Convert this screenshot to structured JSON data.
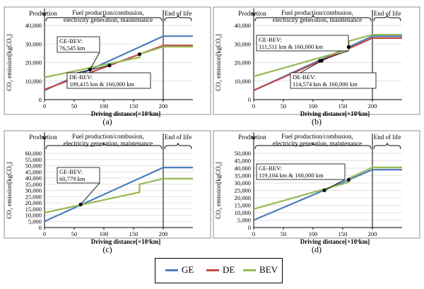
{
  "legend": [
    {
      "name": "GE",
      "color": "#4a7ebb"
    },
    {
      "name": "DE",
      "color": "#be4b48"
    },
    {
      "name": "BEV",
      "color": "#98b954"
    }
  ],
  "phase_labels": {
    "production": "Production",
    "fuel_line1": "Fuel production/combusion,",
    "fuel_line2": "electricity generation, maintenance",
    "end_of_life": "End of life"
  },
  "chart_data": [
    {
      "panel_label": "(a)",
      "type": "line",
      "xlabel": "Driving distance[×10³km]",
      "ylabel": "CO₂ emission[kgCO₂]",
      "xlim": [
        0,
        250
      ],
      "ylim": [
        0,
        40000
      ],
      "x_ticks": [
        0,
        50,
        100,
        150,
        200
      ],
      "y_ticks": [
        0,
        10000,
        20000,
        30000,
        40000
      ],
      "y_tick_labels": [
        "0",
        "10,000",
        "20,000",
        "30,000",
        "40,000"
      ],
      "series": [
        {
          "name": "GE",
          "x": [
            0,
            200,
            250
          ],
          "y": [
            5000,
            34200,
            34200
          ]
        },
        {
          "name": "DE",
          "x": [
            0,
            200,
            250
          ],
          "y": [
            5500,
            29200,
            29200
          ]
        },
        {
          "name": "BEV",
          "x": [
            0,
            160,
            160,
            200,
            250
          ],
          "y": [
            12000,
            22800,
            24500,
            28500,
            28500
          ]
        }
      ],
      "crossings": [
        {
          "x": 76.545,
          "y": 16200,
          "label": "GE-BEV:\n76,545 km",
          "box": "upper"
        },
        {
          "x": 109.415,
          "y": 18400,
          "label": "DE-BEV:\n109,415 km & 160,000 km",
          "box": "lower"
        },
        {
          "x": 160,
          "y": 24500,
          "label": "",
          "box": "none"
        }
      ]
    },
    {
      "panel_label": "(b)",
      "type": "line",
      "xlabel": "Driving distance[×10³km]",
      "ylabel": "CO₂ emission[kgCO₂]",
      "xlim": [
        0,
        250
      ],
      "ylim": [
        0,
        40000
      ],
      "x_ticks": [
        0,
        50,
        100,
        150,
        200
      ],
      "y_ticks": [
        0,
        10000,
        20000,
        30000,
        40000
      ],
      "y_tick_labels": [
        "0",
        "10,000",
        "20,000",
        "30,000",
        "40,000"
      ],
      "series": [
        {
          "name": "GE",
          "x": [
            0,
            200,
            250
          ],
          "y": [
            5000,
            34200,
            34200
          ]
        },
        {
          "name": "DE",
          "x": [
            0,
            200,
            250
          ],
          "y": [
            5000,
            33200,
            33200
          ]
        },
        {
          "name": "BEV",
          "x": [
            0,
            160,
            160,
            200,
            250
          ],
          "y": [
            12500,
            27000,
            31500,
            35000,
            35000
          ]
        }
      ],
      "crossings": [
        {
          "x": 111.511,
          "y": 20900,
          "label": "GE-BEV:\n111,511 km & 160,000 km",
          "box": "upper"
        },
        {
          "x": 114.574,
          "y": 21000,
          "label": "DE-BEV:\n114,574 km & 160,000 km",
          "box": "lower"
        },
        {
          "x": 160,
          "y": 28400,
          "label": "",
          "box": "none"
        }
      ]
    },
    {
      "panel_label": "(c)",
      "type": "line",
      "xlabel": "Driving distance[×10³km]",
      "ylabel": "CO₂ emission[kgCO₂]",
      "xlim": [
        0,
        250
      ],
      "ylim": [
        0,
        60000
      ],
      "x_ticks": [
        0,
        50,
        100,
        150,
        200
      ],
      "y_ticks": [
        0,
        5000,
        10000,
        15000,
        20000,
        25000,
        30000,
        35000,
        40000,
        45000,
        50000,
        55000,
        60000
      ],
      "y_tick_labels": [
        "0",
        "5,000",
        "10,000",
        "15,000",
        "20,000",
        "25,000",
        "30,000",
        "35,000",
        "40,000",
        "45,000",
        "50,000",
        "55,000",
        "60,000"
      ],
      "series": [
        {
          "name": "GE",
          "x": [
            0,
            200,
            250
          ],
          "y": [
            5000,
            48500,
            48500
          ]
        },
        {
          "name": "BEV",
          "x": [
            0,
            160,
            160,
            200,
            250
          ],
          "y": [
            12000,
            28500,
            35000,
            39500,
            39500
          ]
        }
      ],
      "crossings": [
        {
          "x": 60.779,
          "y": 18600,
          "label": "GE-BEV:\n60,779 km",
          "box": "upper"
        }
      ]
    },
    {
      "panel_label": "(d)",
      "type": "line",
      "xlabel": "Driving distance[×10³km]",
      "ylabel": "CO₂ emission[kgCO₂]",
      "xlim": [
        0,
        250
      ],
      "ylim": [
        0,
        50000
      ],
      "x_ticks": [
        0,
        50,
        100,
        150,
        200
      ],
      "y_ticks": [
        0,
        5000,
        10000,
        15000,
        20000,
        25000,
        30000,
        35000,
        40000,
        45000,
        50000
      ],
      "y_tick_labels": [
        "0",
        "5,000",
        "10,000",
        "15,000",
        "20,000",
        "25,000",
        "30,000",
        "35,000",
        "40,000",
        "45,000",
        "50,000"
      ],
      "series": [
        {
          "name": "GE",
          "x": [
            0,
            200,
            250
          ],
          "y": [
            5000,
            39000,
            39000
          ]
        },
        {
          "name": "BEV",
          "x": [
            0,
            160,
            160,
            200,
            250
          ],
          "y": [
            12500,
            30500,
            33000,
            40500,
            40500
          ]
        }
      ],
      "crossings": [
        {
          "x": 119.104,
          "y": 25100,
          "label": "GE-BEV:\n119,104 km & 160,000 km",
          "box": "upper"
        },
        {
          "x": 160,
          "y": 32200,
          "label": "",
          "box": "none"
        }
      ]
    }
  ]
}
